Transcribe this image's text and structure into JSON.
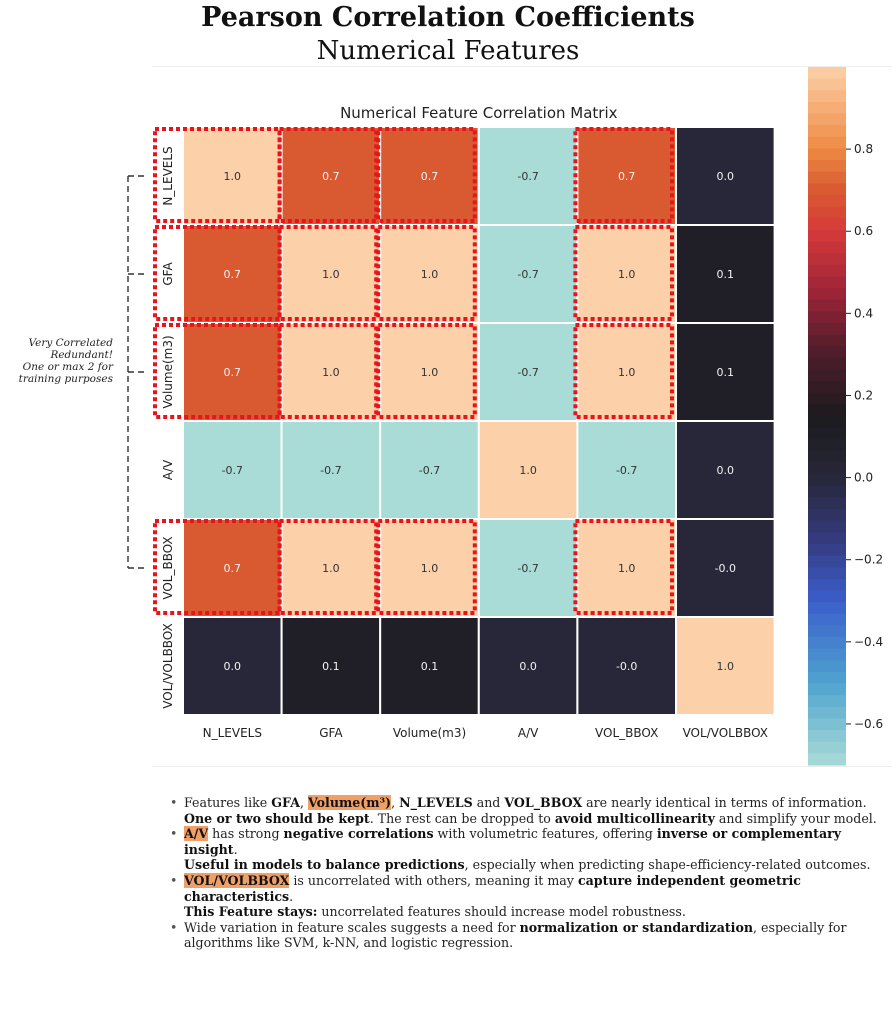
{
  "title": "Pearson Correlation Coefficients",
  "subtitle": "Numerical Features",
  "side_note": [
    "Very Correlated",
    "Redundant!",
    "One or max 2 for",
    "training purposes"
  ],
  "bullets": [
    {
      "p1": "Features like ",
      "h1": "GFA",
      "p2": ", ",
      "h2": "Volume(m³)",
      "p3": ", ",
      "h3": "N_LEVELS",
      "p4": " and ",
      "h4": "VOL_BBOX",
      "p5": " are nearly identical in terms of information.",
      "l2b": "One or two should be kept",
      "l2a": ". The rest can be dropped to ",
      "l2c": "avoid multicollinearity",
      "l2d": " and simplify your model."
    },
    {
      "h1": "A/V",
      "p1": " has strong ",
      "b1": "negative correlations",
      "p2": " with volumetric features, offering ",
      "b2": "inverse or complementary insight",
      "p3": ".",
      "l2b": "Useful in models to balance predictions",
      "l2a": ", especially when predicting shape-efficiency-related outcomes."
    },
    {
      "h1": "VOL/VOLBBOX",
      "p1": " is uncorrelated with others, meaning it may ",
      "b1": "capture independent geometric characteristics",
      "p2": ".",
      "l2b": "This Feature stays:",
      "l2a": " uncorrelated features should increase model robustness."
    },
    {
      "p1": "Wide variation in feature scales suggests a need for ",
      "b1": "normalization or standardization",
      "p2": ", especially for algorithms like SVM, k-NN, and logistic regression."
    }
  ],
  "chart_data": {
    "type": "heatmap",
    "title": "Numerical Feature Correlation Matrix",
    "x_labels": [
      "N_LEVELS",
      "GFA",
      "Volume(m3)",
      "A/V",
      "VOL_BBOX",
      "VOL/VOLBBOX"
    ],
    "y_labels": [
      "N_LEVELS",
      "GFA",
      "Volume(m3)",
      "A/V",
      "VOL_BBOX",
      "VOL/VOLBBOX"
    ],
    "values": [
      [
        1.0,
        0.7,
        0.7,
        -0.7,
        0.7,
        0.0
      ],
      [
        0.7,
        1.0,
        1.0,
        -0.7,
        1.0,
        0.1
      ],
      [
        0.7,
        1.0,
        1.0,
        -0.7,
        1.0,
        0.1
      ],
      [
        -0.7,
        -0.7,
        -0.7,
        1.0,
        -0.7,
        0.0
      ],
      [
        0.7,
        1.0,
        1.0,
        -0.7,
        1.0,
        -0.0
      ],
      [
        0.0,
        0.1,
        0.1,
        0.0,
        -0.0,
        1.0
      ]
    ],
    "cell_labels": [
      [
        "1.0",
        "0.7",
        "0.7",
        "-0.7",
        "0.7",
        "0.0"
      ],
      [
        "0.7",
        "1.0",
        "1.0",
        "-0.7",
        "1.0",
        "0.1"
      ],
      [
        "0.7",
        "1.0",
        "1.0",
        "-0.7",
        "1.0",
        "0.1"
      ],
      [
        "-0.7",
        "-0.7",
        "-0.7",
        "1.0",
        "-0.7",
        "0.0"
      ],
      [
        "0.7",
        "1.0",
        "1.0",
        "-0.7",
        "1.0",
        "-0.0"
      ],
      [
        "0.0",
        "0.1",
        "0.1",
        "0.0",
        "-0.0",
        "1.0"
      ]
    ],
    "colormap": "icefire",
    "color_range": [
      -0.7,
      1.0
    ],
    "colorbar_ticks": [
      0.8,
      0.6,
      0.4,
      0.2,
      0.0,
      -0.2,
      -0.4,
      -0.6
    ],
    "colorbar_tick_labels": [
      "0.8",
      "0.6",
      "0.4",
      "0.2",
      "0.0",
      "−0.2",
      "−0.4",
      "−0.6"
    ],
    "highlighted_cells": [
      [
        0,
        0
      ],
      [
        0,
        1
      ],
      [
        0,
        2
      ],
      [
        0,
        4
      ],
      [
        1,
        0
      ],
      [
        1,
        1
      ],
      [
        1,
        2
      ],
      [
        1,
        4
      ],
      [
        2,
        0
      ],
      [
        2,
        1
      ],
      [
        2,
        2
      ],
      [
        2,
        4
      ],
      [
        4,
        0
      ],
      [
        4,
        1
      ],
      [
        4,
        2
      ],
      [
        4,
        4
      ]
    ],
    "bracket_rows": [
      "N_LEVELS",
      "GFA",
      "Volume(m3)",
      "VOL_BBOX"
    ],
    "colors": {
      "high": "#fcd0a8",
      "mid_high": "#d95a30",
      "neutral": "#21212d",
      "low": "#b5e2dc",
      "highlight_box": "#e8141c"
    }
  }
}
